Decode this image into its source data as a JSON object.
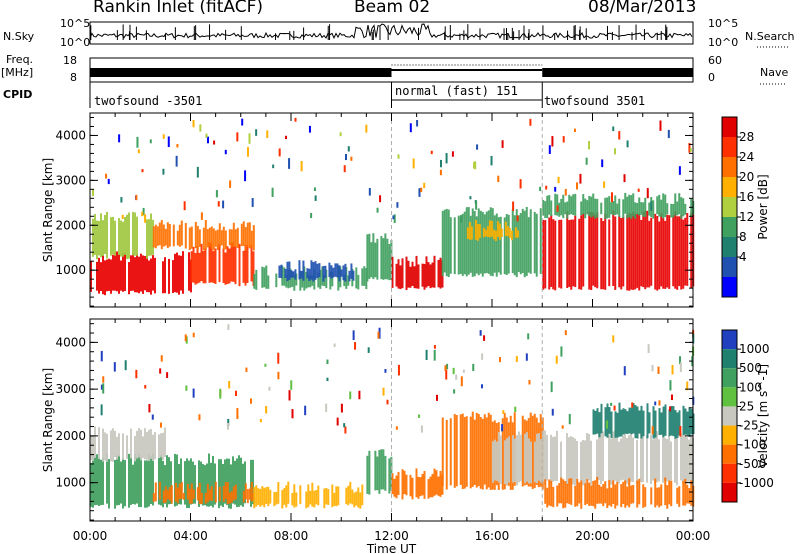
{
  "header": {
    "station": "Rankin Inlet (fitACF)",
    "beam": "Beam 02",
    "date": "08/Mar/2013"
  },
  "strip": {
    "nsky_label": "N.Sky",
    "nsky_ticks": [
      "10^5",
      "10^0"
    ],
    "nsearch_label": "N.Search",
    "nsearch_ticks": [
      "10^5",
      "10^0"
    ],
    "freq_label": "Freq.",
    "freq_unit": "[MHz]",
    "freq_ticks": [
      "18",
      "8"
    ],
    "nave_label": "Nave",
    "nave_ticks": [
      "60",
      "0"
    ],
    "cpid_label": "CPID",
    "cpid_segments": [
      {
        "label": "twofsound -3501",
        "start_h": 0,
        "end_h": 12
      },
      {
        "label": "normal (fast) 151",
        "start_h": 12,
        "end_h": 18
      },
      {
        "label": "twofsound 3501",
        "start_h": 18,
        "end_h": 24
      }
    ]
  },
  "chart_data": [
    {
      "type": "heatmap",
      "title": "",
      "xlabel": "Time UT",
      "ylabel": "Slant Range [km]",
      "xlim": [
        0,
        24
      ],
      "ylim": [
        180,
        4500
      ],
      "x_ticks": [
        "00:00",
        "04:00",
        "08:00",
        "12:00",
        "16:00",
        "20:00",
        "00:00"
      ],
      "y_ticks": [
        "1000",
        "2000",
        "3000",
        "4000"
      ],
      "colorbar": {
        "label": "Power [dB]",
        "ticks": [
          "28",
          "24",
          "20",
          "16",
          "12",
          "8",
          "4"
        ],
        "colors": [
          "#e00000",
          "#ff3000",
          "#ff7000",
          "#ffb000",
          "#b0d040",
          "#40a060",
          "#208070",
          "#2050b0",
          "#0000ff"
        ]
      },
      "bands": [
        {
          "t0": 0.0,
          "t1": 4.0,
          "r0": 500,
          "r1": 1300,
          "color": "#e80000"
        },
        {
          "t0": 4.0,
          "t1": 6.5,
          "r0": 700,
          "r1": 1500,
          "color": "#ff3000"
        },
        {
          "t0": 0.0,
          "t1": 2.5,
          "r0": 1300,
          "r1": 2200,
          "color": "#a0c840"
        },
        {
          "t0": 2.5,
          "t1": 6.5,
          "r0": 1500,
          "r1": 2000,
          "color": "#ff7000"
        },
        {
          "t0": 6.5,
          "t1": 11.0,
          "r0": 600,
          "r1": 1000,
          "color": "#40a060"
        },
        {
          "t0": 7.5,
          "t1": 10.5,
          "r0": 800,
          "r1": 1100,
          "color": "#2050b0"
        },
        {
          "t0": 11.0,
          "t1": 12.0,
          "r0": 800,
          "r1": 1700,
          "color": "#40a060"
        },
        {
          "t0": 12.0,
          "t1": 14.0,
          "r0": 600,
          "r1": 1200,
          "color": "#e00000"
        },
        {
          "t0": 14.0,
          "t1": 18.0,
          "r0": 900,
          "r1": 2300,
          "color": "#40a060"
        },
        {
          "t0": 15.0,
          "t1": 17.0,
          "r0": 1700,
          "r1": 2000,
          "color": "#ffb000"
        },
        {
          "t0": 18.0,
          "t1": 24.0,
          "r0": 600,
          "r1": 2200,
          "color": "#e80000"
        },
        {
          "t0": 18.0,
          "t1": 24.0,
          "r0": 2200,
          "r1": 2600,
          "color": "#40a060"
        }
      ]
    },
    {
      "type": "heatmap",
      "title": "",
      "xlabel": "Time UT",
      "ylabel": "Slant Range [km]",
      "xlim": [
        0,
        24
      ],
      "ylim": [
        180,
        4500
      ],
      "x_ticks": [
        "00:00",
        "04:00",
        "08:00",
        "12:00",
        "16:00",
        "20:00",
        "00:00"
      ],
      "y_ticks": [
        "1000",
        "2000",
        "3000",
        "4000"
      ],
      "colorbar": {
        "label": "Velocity [m s^-1]",
        "ticks": [
          "1000",
          "500",
          "100",
          "25",
          "-25",
          "-100",
          "-500",
          "-1000"
        ],
        "colors": [
          "#2040c0",
          "#208070",
          "#40a060",
          "#60c040",
          "#c8c8c0",
          "#ffb000",
          "#ff7000",
          "#ff3000",
          "#e00000"
        ]
      },
      "bands": [
        {
          "t0": 0.0,
          "t1": 6.5,
          "r0": 500,
          "r1": 1500,
          "color": "#40a060"
        },
        {
          "t0": 0.0,
          "t1": 3.0,
          "r0": 1500,
          "r1": 2100,
          "color": "#c8c8c0"
        },
        {
          "t0": 2.5,
          "t1": 6.5,
          "r0": 600,
          "r1": 900,
          "color": "#ff7000"
        },
        {
          "t0": 6.5,
          "t1": 11.0,
          "r0": 500,
          "r1": 900,
          "color": "#ffb000"
        },
        {
          "t0": 11.0,
          "t1": 12.0,
          "r0": 800,
          "r1": 1600,
          "color": "#40a060"
        },
        {
          "t0": 12.0,
          "t1": 14.0,
          "r0": 700,
          "r1": 1200,
          "color": "#ff7000"
        },
        {
          "t0": 14.0,
          "t1": 18.0,
          "r0": 900,
          "r1": 2400,
          "color": "#ff7000"
        },
        {
          "t0": 16.0,
          "t1": 24.0,
          "r0": 1000,
          "r1": 2000,
          "color": "#c8c8c0"
        },
        {
          "t0": 18.0,
          "t1": 24.0,
          "r0": 500,
          "r1": 1000,
          "color": "#ff7000"
        },
        {
          "t0": 20.0,
          "t1": 24.0,
          "r0": 2000,
          "r1": 2600,
          "color": "#208070"
        }
      ]
    }
  ],
  "colors": {
    "grid_dash": "#b0b0b0",
    "ink": "#000000"
  }
}
